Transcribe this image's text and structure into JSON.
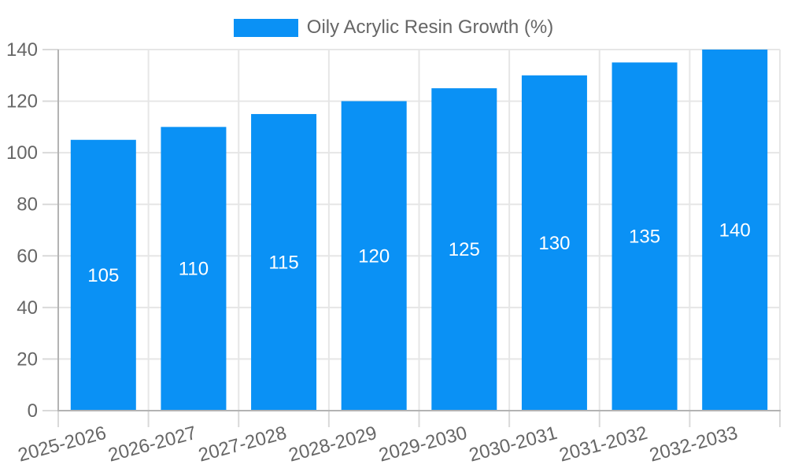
{
  "legend": {
    "label": "Oily Acrylic Resin Growth (%)"
  },
  "chart_data": {
    "type": "bar",
    "title": "",
    "xlabel": "",
    "ylabel": "",
    "categories": [
      "2025-2026",
      "2026-2027",
      "2027-2028",
      "2028-2029",
      "2029-2030",
      "2030-2031",
      "2031-2032",
      "2032-2033"
    ],
    "series": [
      {
        "name": "Oily Acrylic Resin Growth (%)",
        "values": [
          105,
          110,
          115,
          120,
          125,
          130,
          135,
          140
        ]
      }
    ],
    "ylim": [
      0,
      140
    ],
    "yticks": [
      0,
      20,
      40,
      60,
      80,
      100,
      120,
      140
    ],
    "grid": true,
    "legend_position": "top",
    "bar_value_labels": "inside-center",
    "x_label_rotation_deg": -15
  },
  "colors": {
    "bar": "#0A91F5",
    "axis_text": "#666666",
    "grid_line": "#E6E6E6",
    "tick_line": "#D9D9D9",
    "axis_line": "#B3B3B3",
    "data_label": "#FFFFFF",
    "background": "#FFFFFF"
  }
}
